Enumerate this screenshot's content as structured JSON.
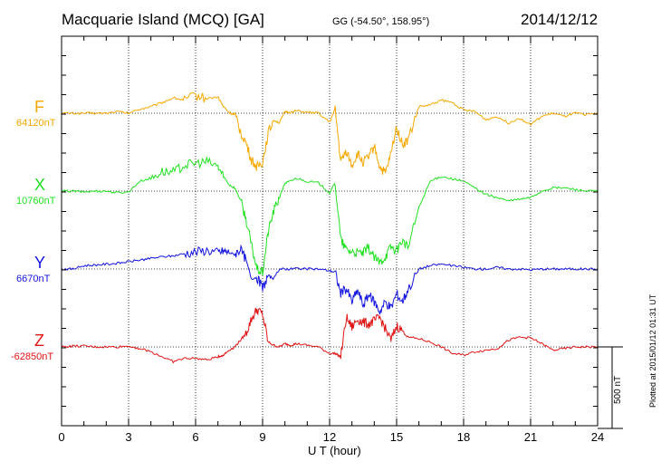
{
  "header": {
    "station": "Macquarie Island (MCQ)  [GA]",
    "coords": "GG (-54.50°, 158.95°)",
    "date": "2014/12/12"
  },
  "footer": {
    "plotted": "Plotted at 2015/01/12 01:31  UT"
  },
  "scale_bar": {
    "label": "500 nT",
    "value_nT": 500
  },
  "chart_data": {
    "type": "line",
    "title": "Macquarie Island (MCQ)  [GA]",
    "xlabel": "U T (hour)",
    "ylabel": "",
    "xlim": [
      0,
      24
    ],
    "xticks": [
      0,
      3,
      6,
      9,
      12,
      15,
      18,
      21,
      24
    ],
    "grid": true,
    "series": [
      {
        "name": "F",
        "baseline_label": "64120nT",
        "color": "#f5a800",
        "offset_nT": 0,
        "x": [
          0,
          0.5,
          1,
          1.5,
          2,
          2.5,
          3,
          3.5,
          4,
          4.5,
          5,
          5.5,
          6,
          6.5,
          7,
          7.25,
          7.5,
          7.75,
          8,
          8.25,
          8.5,
          8.75,
          9,
          9.25,
          9.5,
          9.75,
          10,
          10.25,
          10.5,
          11,
          11.5,
          12,
          12.25,
          12.5,
          12.75,
          13,
          13.25,
          13.5,
          13.75,
          14,
          14.25,
          14.5,
          14.75,
          15,
          15.25,
          15.5,
          16,
          16.5,
          17,
          17.5,
          18,
          18.5,
          19,
          19.5,
          20,
          20.5,
          21,
          21.5,
          22,
          22.5,
          23,
          23.5,
          24
        ],
        "values": [
          0,
          0,
          0,
          0,
          0,
          10,
          0,
          25,
          40,
          65,
          95,
          80,
          110,
          90,
          100,
          40,
          5,
          -10,
          -110,
          -180,
          -290,
          -330,
          -300,
          -120,
          -40,
          -60,
          10,
          5,
          15,
          5,
          0,
          -55,
          25,
          -300,
          -230,
          -320,
          -250,
          -300,
          -270,
          -200,
          -330,
          -370,
          -250,
          -80,
          -190,
          -170,
          40,
          50,
          80,
          65,
          20,
          10,
          -40,
          -20,
          -60,
          -30,
          -70,
          -20,
          0,
          -20,
          0,
          -10,
          0
        ]
      },
      {
        "name": "X",
        "baseline_label": "10760nT",
        "color": "#22e022",
        "offset_nT": 0,
        "x": [
          0,
          0.5,
          1,
          1.5,
          2,
          2.5,
          3,
          3.5,
          4,
          4.5,
          5,
          5.5,
          6,
          6.5,
          7,
          7.25,
          7.5,
          7.75,
          8,
          8.25,
          8.5,
          8.75,
          9,
          9.25,
          9.5,
          9.75,
          10,
          10.25,
          10.5,
          11,
          11.5,
          12,
          12.25,
          12.5,
          12.75,
          13,
          13.25,
          13.5,
          13.75,
          14,
          14.25,
          14.5,
          14.75,
          15,
          15.25,
          15.5,
          16,
          16.5,
          17,
          17.5,
          18,
          18.5,
          19,
          19.5,
          20,
          20.5,
          21,
          21.5,
          22,
          22.5,
          23,
          23.5,
          24
        ],
        "values": [
          0,
          0,
          -5,
          0,
          0,
          -10,
          -5,
          60,
          80,
          120,
          115,
          160,
          170,
          180,
          150,
          90,
          40,
          20,
          -50,
          -170,
          -330,
          -480,
          -500,
          -250,
          -120,
          -40,
          50,
          60,
          80,
          60,
          50,
          -10,
          50,
          -300,
          -360,
          -370,
          -380,
          -380,
          -350,
          -410,
          -440,
          -400,
          -340,
          -370,
          -300,
          -350,
          -100,
          60,
          90,
          75,
          60,
          20,
          -20,
          -40,
          -60,
          -50,
          -40,
          0,
          20,
          20,
          10,
          0,
          0
        ]
      },
      {
        "name": "Y",
        "baseline_label": "6670nT",
        "color": "#1414e0",
        "offset_nT": 0,
        "x": [
          0,
          0.5,
          1,
          1.5,
          2,
          2.5,
          3,
          3.5,
          4,
          4.5,
          5,
          5.5,
          6,
          6.5,
          7,
          7.25,
          7.5,
          7.75,
          8,
          8.25,
          8.5,
          8.75,
          9,
          9.25,
          9.5,
          9.75,
          10,
          10.25,
          10.5,
          11,
          11.5,
          12,
          12.25,
          12.5,
          12.75,
          13,
          13.25,
          13.5,
          13.75,
          14,
          14.25,
          14.5,
          14.75,
          15,
          15.25,
          15.5,
          16,
          16.5,
          17,
          17.5,
          18,
          18.5,
          19,
          19.5,
          20,
          20.5,
          21,
          21.5,
          22,
          22.5,
          23,
          23.5,
          24
        ],
        "values": [
          0,
          0,
          20,
          25,
          30,
          35,
          45,
          55,
          65,
          75,
          80,
          95,
          105,
          115,
          100,
          110,
          100,
          90,
          120,
          60,
          -60,
          -50,
          -120,
          -40,
          -60,
          0,
          0,
          0,
          5,
          0,
          0,
          -10,
          -20,
          -150,
          -120,
          -200,
          -130,
          -220,
          -160,
          -200,
          -260,
          -200,
          -240,
          -150,
          -200,
          -130,
          0,
          20,
          30,
          20,
          10,
          0,
          0,
          10,
          0,
          0,
          -5,
          0,
          0,
          0,
          0,
          0,
          0
        ]
      },
      {
        "name": "Z",
        "baseline_label": "-62850nT",
        "color": "#e01414",
        "offset_nT": 0,
        "x": [
          0,
          0.5,
          1,
          1.5,
          2,
          2.5,
          3,
          3.5,
          4,
          4.5,
          5,
          5.5,
          6,
          6.5,
          7,
          7.25,
          7.5,
          7.75,
          8,
          8.25,
          8.5,
          8.75,
          9,
          9.25,
          9.5,
          9.75,
          10,
          10.25,
          10.5,
          11,
          11.5,
          12,
          12.25,
          12.5,
          12.75,
          13,
          13.25,
          13.5,
          13.75,
          14,
          14.25,
          14.5,
          14.75,
          15,
          15.25,
          15.5,
          16,
          16.5,
          17,
          17.5,
          18,
          18.5,
          19,
          19.5,
          20,
          20.5,
          21,
          21.5,
          22,
          22.5,
          23,
          23.5,
          24
        ],
        "values": [
          0,
          5,
          5,
          0,
          0,
          0,
          5,
          -10,
          -30,
          -60,
          -90,
          -70,
          -70,
          -80,
          -60,
          -50,
          -20,
          0,
          40,
          80,
          170,
          230,
          200,
          30,
          10,
          0,
          20,
          10,
          20,
          10,
          0,
          -40,
          -40,
          -60,
          180,
          120,
          170,
          150,
          140,
          160,
          180,
          110,
          40,
          130,
          100,
          60,
          50,
          30,
          0,
          -40,
          -50,
          -30,
          -20,
          -10,
          40,
          60,
          55,
          20,
          -20,
          -10,
          0,
          0,
          0
        ]
      }
    ],
    "scale_bar_nT": 500
  }
}
